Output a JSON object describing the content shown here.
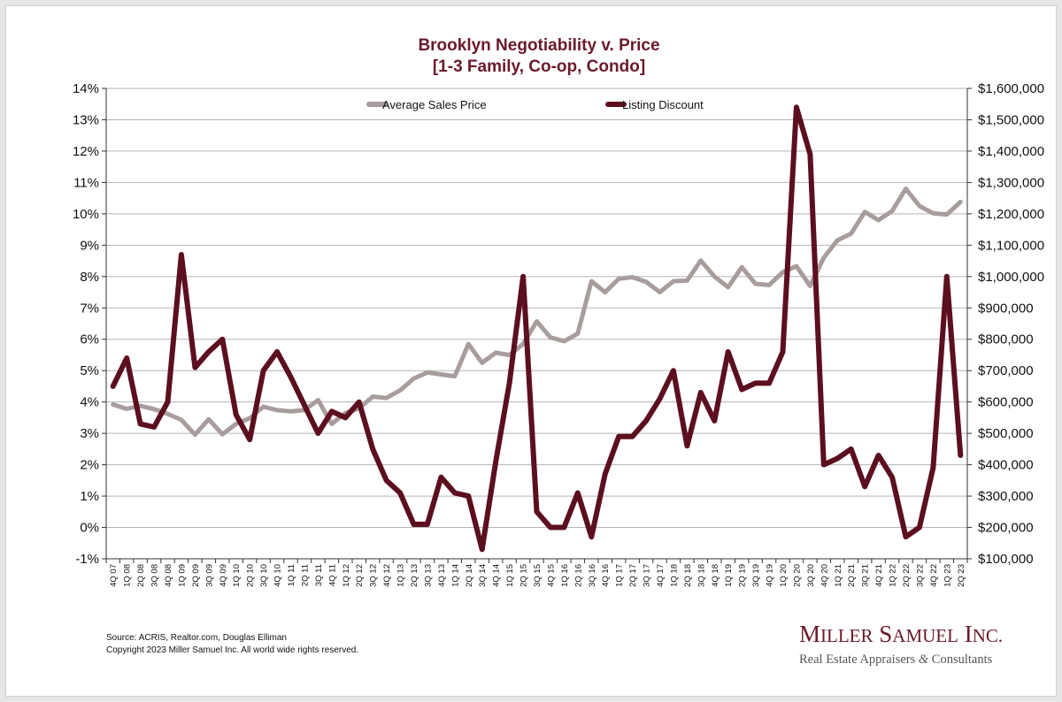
{
  "chart_data": {
    "type": "line",
    "title": "Brooklyn Negotiability v. Price",
    "subtitle": "[1-3 Family, Co-op, Condo]",
    "x": [
      "4Q 07",
      "1Q 08",
      "2Q 08",
      "3Q 08",
      "4Q 08",
      "1Q 09",
      "2Q 09",
      "3Q 09",
      "4Q 09",
      "1Q 10",
      "2Q 10",
      "3Q 10",
      "4Q 10",
      "1Q 11",
      "2Q 11",
      "3Q 11",
      "4Q 11",
      "1Q 12",
      "2Q 12",
      "3Q 12",
      "4Q 12",
      "1Q 13",
      "2Q 13",
      "3Q 13",
      "4Q 13",
      "1Q 14",
      "2Q 14",
      "3Q 14",
      "4Q 14",
      "1Q 15",
      "2Q 15",
      "3Q 15",
      "4Q 15",
      "1Q 16",
      "2Q 16",
      "3Q 16",
      "4Q 16",
      "1Q 17",
      "2Q 17",
      "3Q 17",
      "4Q 17",
      "1Q 18",
      "2Q 18",
      "3Q 18",
      "4Q 18",
      "1Q 19",
      "2Q 19",
      "3Q 19",
      "4Q 19",
      "1Q 20",
      "2Q 20",
      "3Q 20",
      "4Q 20",
      "1Q 21",
      "2Q 21",
      "3Q 21",
      "4Q 21",
      "1Q 22",
      "2Q 22",
      "3Q 22",
      "4Q 22",
      "1Q 23",
      "2Q 23"
    ],
    "series": [
      {
        "name": "Average Sales Price",
        "axis": "right",
        "color": "#a89c9c",
        "values": [
          592000,
          578000,
          588000,
          577000,
          562000,
          543000,
          496000,
          545000,
          497000,
          530000,
          548000,
          585000,
          574000,
          570000,
          574000,
          606000,
          530000,
          565000,
          580000,
          617000,
          613000,
          637000,
          675000,
          694000,
          688000,
          682000,
          785000,
          725000,
          757000,
          750000,
          785000,
          857000,
          806000,
          794000,
          818000,
          985000,
          950000,
          993000,
          998000,
          983000,
          950000,
          985000,
          987000,
          1051000,
          1000000,
          966000,
          1030000,
          977000,
          973000,
          1014000,
          1033000,
          970000,
          1060000,
          1116000,
          1137000,
          1206000,
          1180000,
          1209000,
          1280000,
          1225000,
          1202000,
          1198000,
          1238000
        ]
      },
      {
        "name": "Listing Discount",
        "axis": "left",
        "color": "#5c0f1f",
        "values": [
          4.5,
          5.4,
          3.3,
          3.2,
          4.0,
          8.7,
          5.1,
          5.6,
          6.0,
          3.6,
          2.8,
          5.0,
          5.6,
          4.8,
          3.9,
          3.0,
          3.7,
          3.5,
          4.0,
          2.5,
          1.5,
          1.1,
          0.1,
          0.1,
          1.6,
          1.1,
          1.0,
          -0.7,
          2.1,
          4.6,
          8.0,
          0.5,
          0.0,
          0.0,
          1.1,
          -0.3,
          1.7,
          2.9,
          2.9,
          3.4,
          4.1,
          5.0,
          2.6,
          4.3,
          3.4,
          5.6,
          4.4,
          4.6,
          4.6,
          5.6,
          13.4,
          11.9,
          2.0,
          2.2,
          2.5,
          1.3,
          2.3,
          1.6,
          -0.3,
          0.0,
          1.9,
          8.0,
          2.3
        ]
      }
    ],
    "y_left": {
      "min": -1,
      "max": 14,
      "ticks": [
        "-1%",
        "0%",
        "1%",
        "2%",
        "3%",
        "4%",
        "5%",
        "6%",
        "7%",
        "8%",
        "9%",
        "10%",
        "11%",
        "12%",
        "13%",
        "14%"
      ]
    },
    "y_right": {
      "min": 100000,
      "max": 1600000,
      "ticks": [
        "$100,000",
        "$200,000",
        "$300,000",
        "$400,000",
        "$500,000",
        "$600,000",
        "$700,000",
        "$800,000",
        "$900,000",
        "$1,000,000",
        "$1,100,000",
        "$1,200,000",
        "$1,300,000",
        "$1,400,000",
        "$1,500,000",
        "$1,600,000"
      ]
    },
    "grid": "horizontal",
    "legend_position": "top"
  },
  "footer": {
    "source": "Source: ACRIS, Realtor.com, Douglas Elliman",
    "copyright": "Copyright 2023 Miller Samuel Inc.  All world wide rights reserved."
  },
  "logo": {
    "name": "Miller Samuel Inc.",
    "tagline": "Real Estate Appraisers & Consultants"
  }
}
